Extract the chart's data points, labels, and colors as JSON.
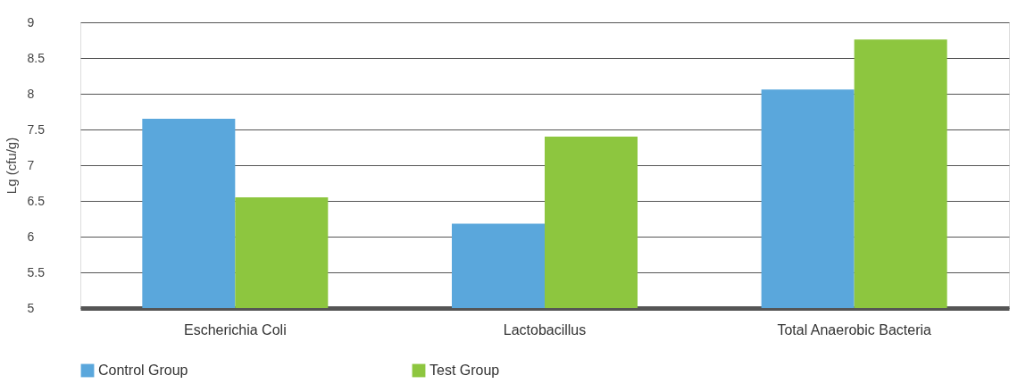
{
  "chart_data": {
    "type": "bar",
    "ylabel": "Lg (cfu/g)",
    "categories": [
      "Escherichia Coli",
      "Lactobacillus",
      "Total Anaerobic Bacteria"
    ],
    "series": [
      {
        "name": "Control Group",
        "color": "#5aa7dc",
        "values": [
          7.65,
          6.18,
          8.06
        ]
      },
      {
        "name": "Test Group",
        "color": "#8dc63f",
        "values": [
          6.55,
          7.4,
          8.76
        ]
      }
    ],
    "ylim": [
      5,
      9
    ],
    "yticks": [
      5,
      5.5,
      6,
      6.5,
      7,
      7.5,
      8,
      8.5,
      9
    ],
    "grid": "y",
    "legend": "bottom"
  }
}
